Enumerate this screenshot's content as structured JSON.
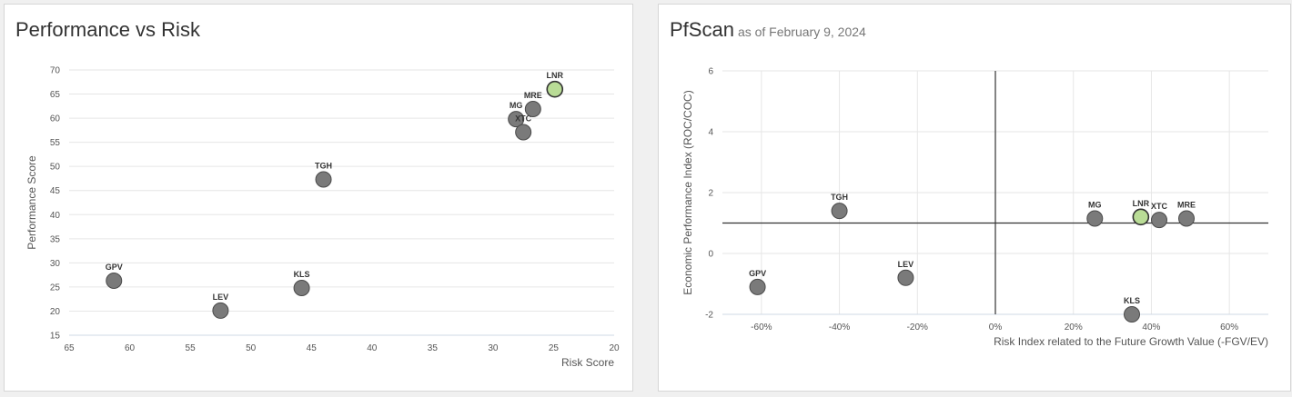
{
  "chart_data": [
    {
      "type": "scatter",
      "title": "Performance vs Risk",
      "xlabel": "Risk Score",
      "ylabel": "Performance Score",
      "xlim": [
        65,
        20
      ],
      "ylim": [
        15,
        70
      ],
      "x_ticks": [
        65,
        60,
        55,
        50,
        45,
        40,
        35,
        30,
        25,
        20
      ],
      "y_ticks": [
        15,
        20,
        25,
        30,
        35,
        40,
        45,
        50,
        55,
        60,
        65,
        70
      ],
      "x_reversed": true,
      "grid": "horizontal",
      "points": [
        {
          "label": "GPV",
          "x": 61.3,
          "y": 26.3
        },
        {
          "label": "LEV",
          "x": 52.5,
          "y": 20.1
        },
        {
          "label": "KLS",
          "x": 45.8,
          "y": 24.8
        },
        {
          "label": "TGH",
          "x": 44.0,
          "y": 47.3
        },
        {
          "label": "MG",
          "x": 28.1,
          "y": 59.8
        },
        {
          "label": "XTC",
          "x": 27.5,
          "y": 57.1
        },
        {
          "label": "MRE",
          "x": 26.7,
          "y": 61.9
        },
        {
          "label": "LNR",
          "x": 24.9,
          "y": 66.0
        }
      ],
      "highlight": "LNR"
    },
    {
      "type": "scatter",
      "title": "PfScan",
      "subtitle": "as of February 9, 2024",
      "xlabel": "Risk Index related to the Future Growth Value (-FGV/EV)",
      "ylabel": "Economic Performance Index (ROC/COC)",
      "xlim": [
        -70,
        70
      ],
      "ylim": [
        -2,
        6
      ],
      "x_ticks": [
        -60,
        -40,
        -20,
        0,
        20,
        40,
        60
      ],
      "x_tick_labels": [
        "-60%",
        "-40%",
        "-20%",
        "0%",
        "20%",
        "40%",
        "60%"
      ],
      "y_ticks": [
        -2,
        0,
        2,
        4,
        6
      ],
      "grid": "both",
      "reference_lines": {
        "x": 0,
        "y": 1
      },
      "points": [
        {
          "label": "GPV",
          "x": -61,
          "y": -1.1
        },
        {
          "label": "TGH",
          "x": -40,
          "y": 1.4
        },
        {
          "label": "LEV",
          "x": -23,
          "y": -0.8
        },
        {
          "label": "MG",
          "x": 25.5,
          "y": 1.15
        },
        {
          "label": "LNR",
          "x": 37.3,
          "y": 1.2
        },
        {
          "label": "XTC",
          "x": 42,
          "y": 1.1
        },
        {
          "label": "MRE",
          "x": 49,
          "y": 1.15
        },
        {
          "label": "KLS",
          "x": 35,
          "y": -2.0
        }
      ],
      "highlight": "LNR"
    }
  ],
  "colors": {
    "point": "#7a7a7a",
    "point_stroke": "#4a4a4a",
    "highlight": "#b9dc96",
    "grid": "#e6e6e6",
    "reference": "#333333"
  }
}
